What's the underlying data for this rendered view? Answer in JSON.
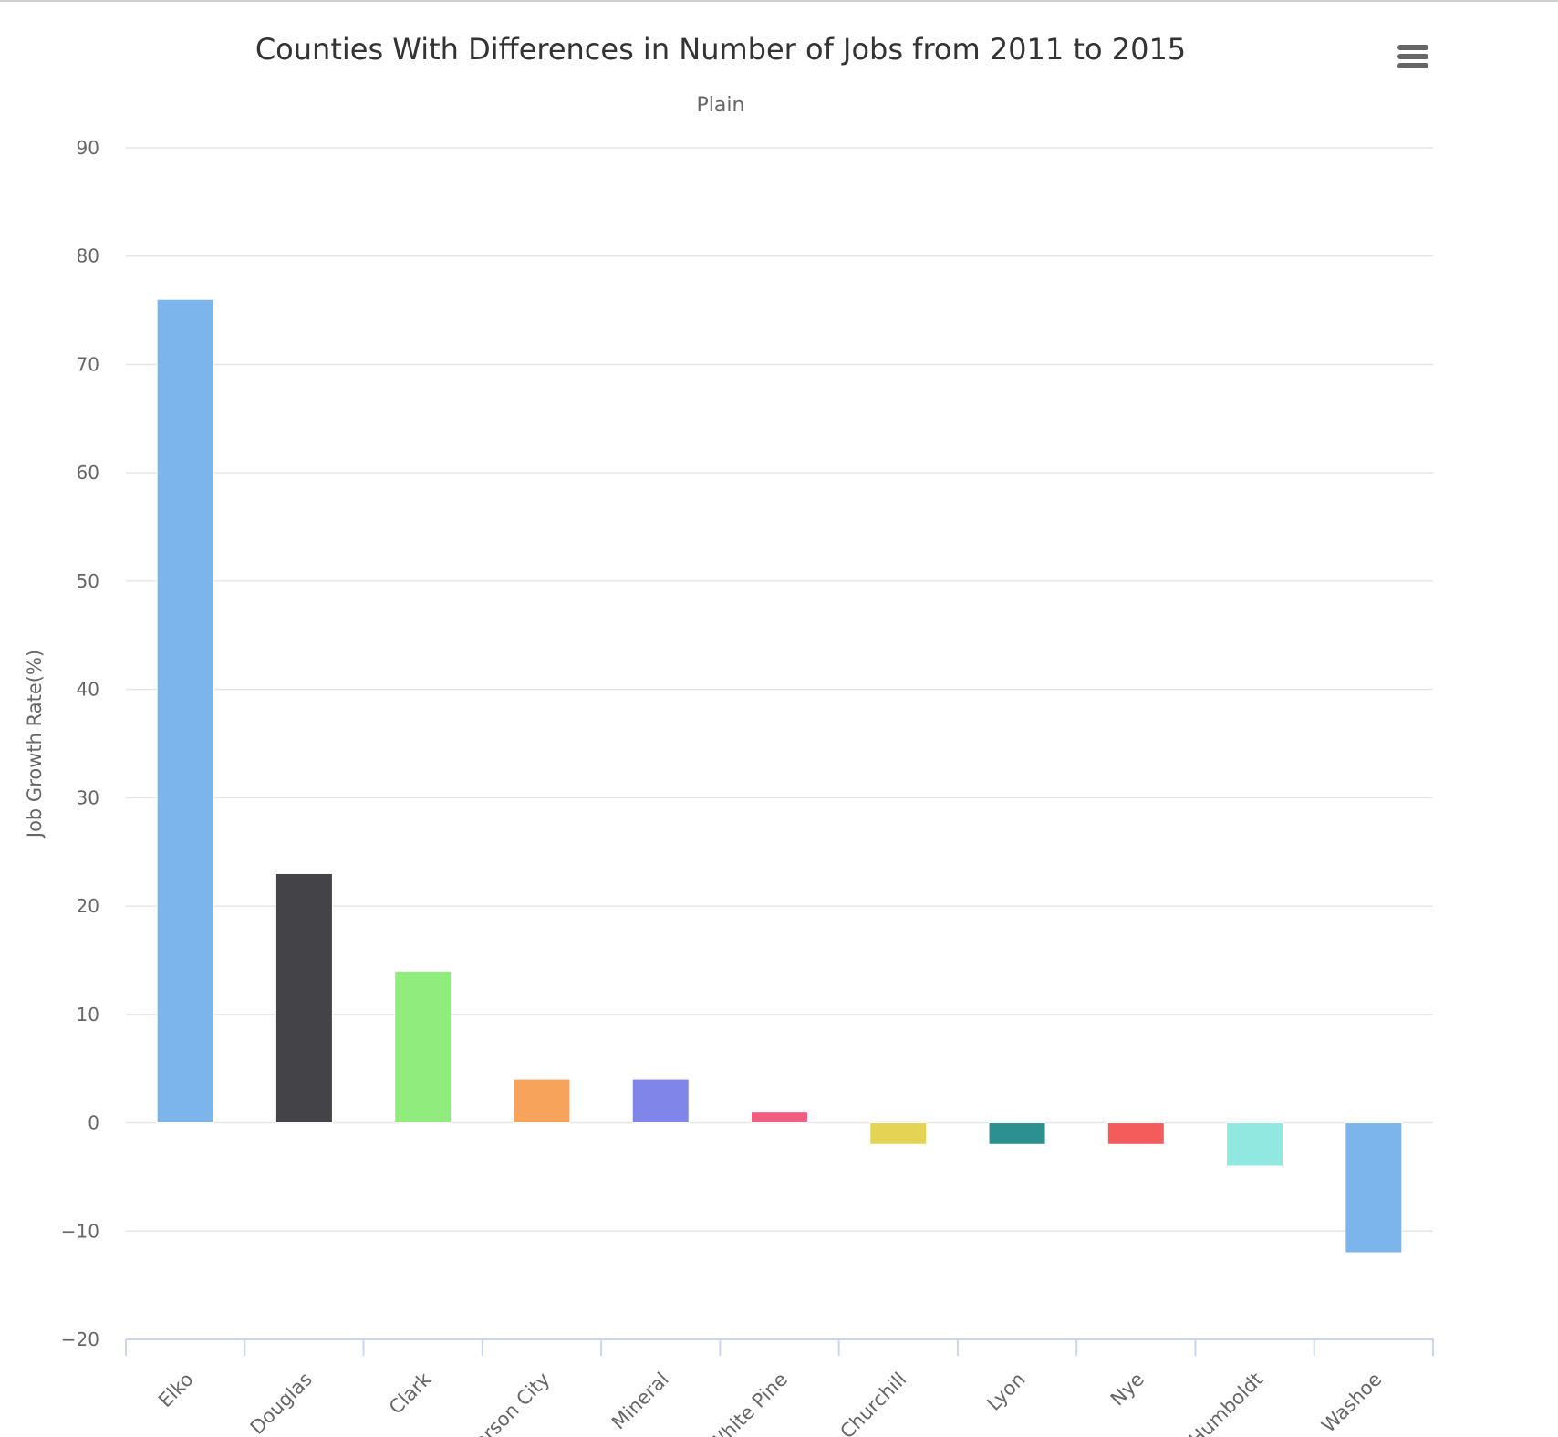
{
  "chart_data": {
    "type": "bar",
    "title": "Counties With Differences in Number of Jobs from 2011 to 2015",
    "subtitle": "Plain",
    "xlabel": "",
    "ylabel": "Job Growth Rate(%)",
    "categories": [
      "Elko",
      "Douglas",
      "Clark",
      "Carson City",
      "Mineral",
      "White Pine",
      "Churchill",
      "Lyon",
      "Nye",
      "Humboldt",
      "Washoe"
    ],
    "values": [
      76,
      23,
      14,
      4,
      4,
      1,
      -2,
      -2,
      -2,
      -4,
      -12
    ],
    "colors": [
      "#7cb5ec",
      "#434348",
      "#90ed7d",
      "#f7a35c",
      "#8085e9",
      "#f15c80",
      "#e4d354",
      "#2b908f",
      "#f45b5b",
      "#91e8e1",
      "#7cb5ec"
    ],
    "ylim": [
      -20,
      90
    ],
    "yticks": [
      -20,
      -10,
      0,
      10,
      20,
      30,
      40,
      50,
      60,
      70,
      80,
      90
    ],
    "ytick_labels": [
      "−20",
      "−10",
      "0",
      "10",
      "20",
      "30",
      "40",
      "50",
      "60",
      "70",
      "80",
      "90"
    ],
    "grid": true,
    "legend": "none"
  },
  "menu": {
    "icon": "hamburger-menu-icon"
  }
}
